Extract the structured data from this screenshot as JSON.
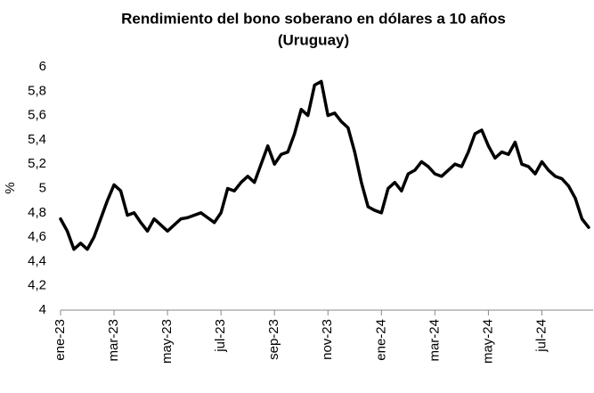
{
  "chart_data": {
    "type": "line",
    "title": "Rendimiento del bono soberano en dólares a 10 años",
    "subtitle": "(Uruguay)",
    "y_label": "%",
    "categories": [
      "ene-23",
      null,
      null,
      null,
      null,
      null,
      null,
      null,
      "mar-23",
      null,
      null,
      null,
      null,
      null,
      null,
      null,
      "may-23",
      null,
      null,
      null,
      null,
      null,
      null,
      null,
      "jul-23",
      null,
      null,
      null,
      null,
      null,
      null,
      null,
      "sep-23",
      null,
      null,
      null,
      null,
      null,
      null,
      null,
      "nov-23",
      null,
      null,
      null,
      null,
      null,
      null,
      null,
      "ene-24",
      null,
      null,
      null,
      null,
      null,
      null,
      null,
      "mar-24",
      null,
      null,
      null,
      null,
      null,
      null,
      null,
      "may-24",
      null,
      null,
      null,
      null,
      null,
      null,
      null,
      "jul-24",
      null,
      null,
      null,
      null,
      null,
      null,
      null
    ],
    "series": [
      {
        "name": "Rendimiento",
        "color": "#000000",
        "values": [
          4.75,
          4.65,
          4.5,
          4.55,
          4.5,
          4.6,
          4.75,
          4.9,
          5.03,
          4.98,
          4.78,
          4.8,
          4.72,
          4.65,
          4.75,
          4.7,
          4.65,
          4.7,
          4.75,
          4.76,
          4.78,
          4.8,
          4.76,
          4.72,
          4.8,
          5.0,
          4.98,
          5.05,
          5.1,
          5.05,
          5.2,
          5.35,
          5.2,
          5.28,
          5.3,
          5.45,
          5.65,
          5.6,
          5.85,
          5.88,
          5.6,
          5.62,
          5.55,
          5.5,
          5.3,
          5.05,
          4.85,
          4.82,
          4.8,
          5.0,
          5.05,
          4.98,
          5.12,
          5.15,
          5.22,
          5.18,
          5.12,
          5.1,
          5.15,
          5.2,
          5.18,
          5.3,
          5.45,
          5.48,
          5.35,
          5.25,
          5.3,
          5.28,
          5.38,
          5.2,
          5.18,
          5.12,
          5.22,
          5.15,
          5.1,
          5.08,
          5.02,
          4.92,
          4.75,
          4.68
        ]
      }
    ],
    "ylim": [
      4,
      6
    ],
    "yticks": [
      4,
      {
        "value": 4.2,
        "label": "4,2"
      },
      {
        "value": 4.4,
        "label": "4,4"
      },
      {
        "value": 4.6,
        "label": "4,6"
      },
      {
        "value": 4.8,
        "label": "4,8"
      },
      5,
      {
        "value": 5.2,
        "label": "5,2"
      },
      {
        "value": 5.4,
        "label": "5,4"
      },
      {
        "value": 5.6,
        "label": "5,6"
      },
      {
        "value": 5.8,
        "label": "5,8"
      },
      6
    ],
    "grid": false
  }
}
